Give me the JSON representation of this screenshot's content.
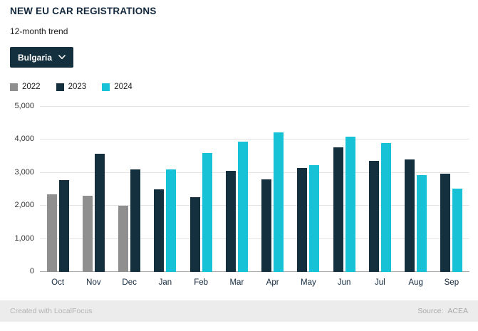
{
  "header": {
    "title": "NEW EU CAR REGISTRATIONS",
    "subtitle": "12-month trend"
  },
  "country_dropdown": {
    "selected": "Bulgaria"
  },
  "legend": [
    {
      "label": "2022",
      "color": "#8f8f8f"
    },
    {
      "label": "2023",
      "color": "#14303f"
    },
    {
      "label": "2024",
      "color": "#18c2d6"
    }
  ],
  "chart_data": {
    "type": "bar",
    "title": "NEW EU CAR REGISTRATIONS",
    "subtitle": "12-month trend",
    "categories": [
      "Oct",
      "Nov",
      "Dec",
      "Jan",
      "Feb",
      "Mar",
      "Apr",
      "May",
      "Jun",
      "Jul",
      "Aug",
      "Sep"
    ],
    "series": [
      {
        "name": "2022",
        "color": "#8f8f8f",
        "values": [
          2350,
          2300,
          2000,
          null,
          null,
          null,
          null,
          null,
          null,
          null,
          null,
          null
        ]
      },
      {
        "name": "2023",
        "color": "#14303f",
        "values": [
          2780,
          3570,
          3100,
          2500,
          2270,
          3050,
          2800,
          3150,
          3780,
          3360,
          3400,
          2970
        ]
      },
      {
        "name": "2024",
        "color": "#18c2d6",
        "values": [
          null,
          null,
          null,
          3100,
          3610,
          3940,
          4230,
          3230,
          4100,
          3900,
          2930,
          2520
        ]
      }
    ],
    "xlabel": "",
    "ylabel": "",
    "ylim": [
      0,
      5000
    ],
    "yticks": [
      0,
      1000,
      2000,
      3000,
      4000,
      5000
    ],
    "ytick_labels": [
      "0",
      "1,000",
      "2,000",
      "3,000",
      "4,000",
      "5,000"
    ],
    "grid": true,
    "legend_position": "top-left"
  },
  "footer": {
    "credit": "Created with LocalFocus",
    "source_label": "Source:",
    "source": "ACEA"
  }
}
